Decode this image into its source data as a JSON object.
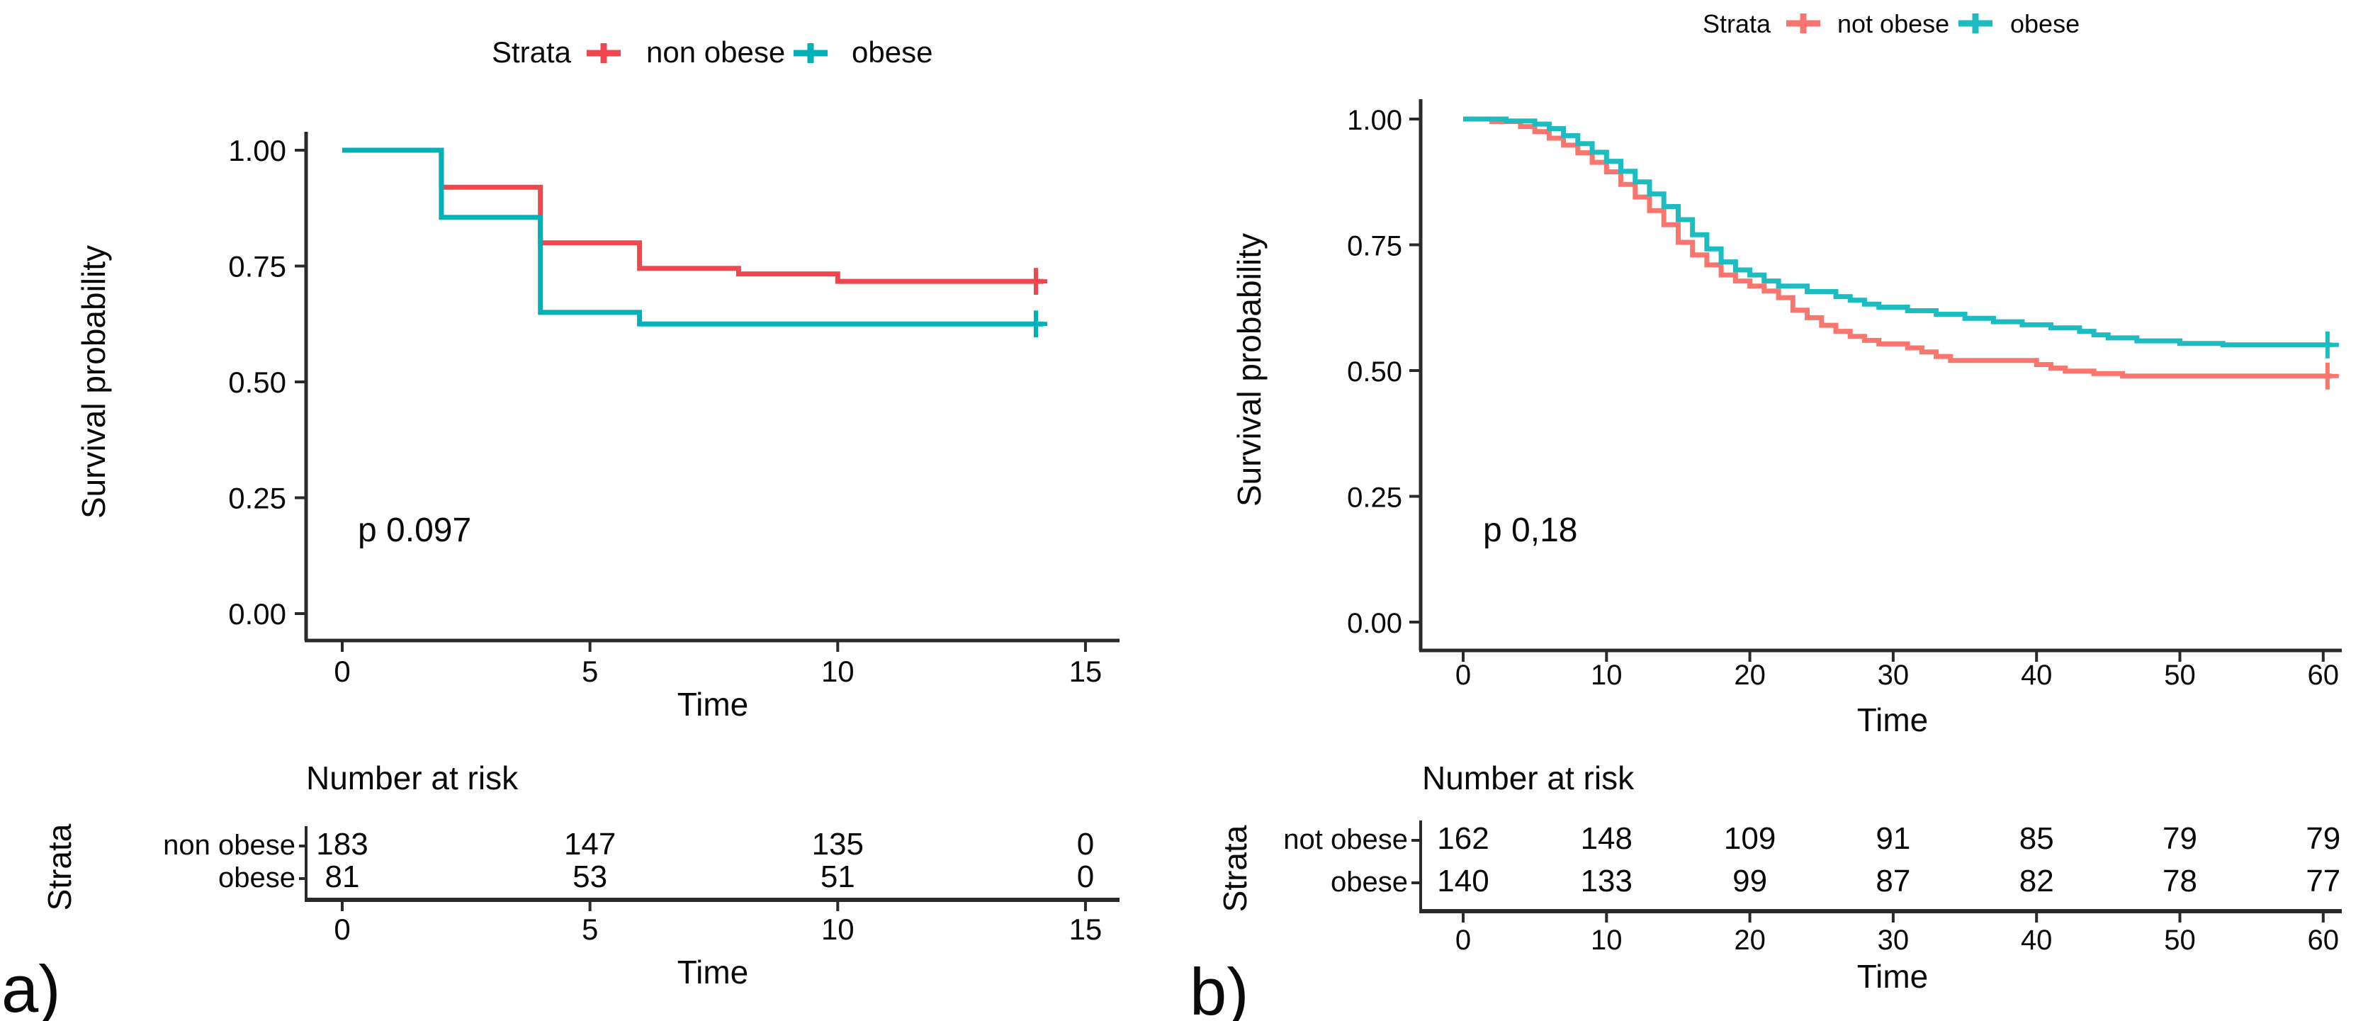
{
  "figure": {
    "background": "#ffffff",
    "panel_letters": [
      "a)",
      "b)"
    ]
  },
  "chart_data": [
    {
      "id": "a",
      "type": "km_step",
      "panel_letter": "a)",
      "legend": {
        "title": "Strata",
        "position": "top-center",
        "items": [
          {
            "label": "non obese",
            "color": "#F0474E",
            "key_glyph": "plus-cross"
          },
          {
            "label": "obese",
            "color": "#00B2B8",
            "key_glyph": "plus-cross"
          }
        ]
      },
      "xlabel": "Time",
      "ylabel": "Survival probability",
      "xlim": [
        0,
        15.7
      ],
      "ylim": [
        0,
        1.05
      ],
      "grid": false,
      "xticks": [
        {
          "t": 0,
          "label": "0"
        },
        {
          "t": 5,
          "label": "5"
        },
        {
          "t": 10,
          "label": "10"
        },
        {
          "t": 15,
          "label": "15"
        }
      ],
      "yticks": [
        {
          "v": 0,
          "label": "0.00"
        },
        {
          "v": 0.25,
          "label": "0.25"
        },
        {
          "v": 0.5,
          "label": "0.50"
        },
        {
          "v": 0.75,
          "label": "0.75"
        },
        {
          "v": 1,
          "label": "1.00"
        }
      ],
      "p_label": "p 0.097",
      "series": [
        {
          "name": "non obese",
          "color": "#F0474E",
          "steps": [
            [
              0,
              1
            ],
            [
              2,
              1
            ],
            [
              2,
              0.92
            ],
            [
              4,
              0.92
            ],
            [
              4,
              0.8
            ],
            [
              6,
              0.8
            ],
            [
              6,
              0.745
            ],
            [
              8,
              0.745
            ],
            [
              8,
              0.733
            ],
            [
              10,
              0.733
            ],
            [
              10,
              0.717
            ],
            [
              14.15,
              0.717
            ]
          ],
          "censors": [
            [
              14,
              0.717
            ]
          ]
        },
        {
          "name": "obese",
          "color": "#00B2B8",
          "steps": [
            [
              0,
              1
            ],
            [
              2,
              1
            ],
            [
              2,
              0.855
            ],
            [
              4,
              0.855
            ],
            [
              4,
              0.65
            ],
            [
              6,
              0.65
            ],
            [
              6,
              0.625
            ],
            [
              14.15,
              0.625
            ]
          ],
          "censors": [
            [
              14,
              0.625
            ]
          ]
        }
      ],
      "risk_table": {
        "title": "Number at risk",
        "strata_axis_label": "Strata",
        "time_label": "Time",
        "times": [
          0,
          5,
          10,
          15
        ],
        "tick_labels": [
          "0",
          "5",
          "10",
          "15"
        ],
        "rows": [
          {
            "label": "non obese",
            "color": "#F4928B",
            "values": [
              "183",
              "147",
              "135",
              "0"
            ]
          },
          {
            "label": "obese",
            "color": "#33C4C7",
            "values": [
              "81",
              "53",
              "51",
              "0"
            ]
          }
        ]
      }
    },
    {
      "id": "b",
      "type": "km_step",
      "panel_letter": "b)",
      "legend": {
        "title": "Strata",
        "position": "top-center",
        "items": [
          {
            "label": "not obese",
            "color": "#F8766D",
            "key_glyph": "plus-cross"
          },
          {
            "label": "obese",
            "color": "#1DBCC1",
            "key_glyph": "plus-cross"
          }
        ]
      },
      "xlabel": "Time",
      "ylabel": "Survival probability",
      "xlim": [
        0,
        61.5
      ],
      "ylim": [
        0,
        1.05
      ],
      "grid": false,
      "xticks": [
        {
          "t": 0,
          "label": "0"
        },
        {
          "t": 10,
          "label": "10"
        },
        {
          "t": 20,
          "label": "20"
        },
        {
          "t": 30,
          "label": "30"
        },
        {
          "t": 40,
          "label": "40"
        },
        {
          "t": 50,
          "label": "50"
        },
        {
          "t": 60,
          "label": "60"
        }
      ],
      "yticks": [
        {
          "v": 0,
          "label": "0.00"
        },
        {
          "v": 0.25,
          "label": "0.25"
        },
        {
          "v": 0.5,
          "label": "0.50"
        },
        {
          "v": 0.75,
          "label": "0.75"
        },
        {
          "v": 1,
          "label": "1.00"
        }
      ],
      "p_label": "p 0,18",
      "series": [
        {
          "name": "not obese",
          "color": "#F8766D",
          "steps": [
            [
              0,
              1
            ],
            [
              2,
              1
            ],
            [
              2,
              0.995
            ],
            [
              4,
              0.995
            ],
            [
              4,
              0.985
            ],
            [
              5,
              0.985
            ],
            [
              5,
              0.975
            ],
            [
              6,
              0.975
            ],
            [
              6,
              0.962
            ],
            [
              7,
              0.962
            ],
            [
              7,
              0.948
            ],
            [
              8,
              0.948
            ],
            [
              8,
              0.933
            ],
            [
              9,
              0.933
            ],
            [
              9,
              0.914
            ],
            [
              10,
              0.914
            ],
            [
              10,
              0.895
            ],
            [
              11,
              0.895
            ],
            [
              11,
              0.87
            ],
            [
              12,
              0.87
            ],
            [
              12,
              0.845
            ],
            [
              13,
              0.845
            ],
            [
              13,
              0.818
            ],
            [
              14,
              0.818
            ],
            [
              14,
              0.79
            ],
            [
              15,
              0.79
            ],
            [
              15,
              0.755
            ],
            [
              16,
              0.755
            ],
            [
              16,
              0.73
            ],
            [
              17,
              0.73
            ],
            [
              17,
              0.71
            ],
            [
              18,
              0.71
            ],
            [
              18,
              0.69
            ],
            [
              19,
              0.69
            ],
            [
              19,
              0.678
            ],
            [
              20,
              0.678
            ],
            [
              20,
              0.668
            ],
            [
              21,
              0.668
            ],
            [
              21,
              0.658
            ],
            [
              22,
              0.658
            ],
            [
              22,
              0.645
            ],
            [
              23,
              0.645
            ],
            [
              23,
              0.62
            ],
            [
              24,
              0.62
            ],
            [
              24,
              0.605
            ],
            [
              25,
              0.605
            ],
            [
              25,
              0.59
            ],
            [
              26,
              0.59
            ],
            [
              26,
              0.578
            ],
            [
              27,
              0.578
            ],
            [
              27,
              0.568
            ],
            [
              28,
              0.568
            ],
            [
              28,
              0.56
            ],
            [
              29,
              0.56
            ],
            [
              29,
              0.553
            ],
            [
              30,
              0.553
            ],
            [
              31,
              0.553
            ],
            [
              31,
              0.545
            ],
            [
              32,
              0.545
            ],
            [
              32,
              0.537
            ],
            [
              33,
              0.537
            ],
            [
              33,
              0.528
            ],
            [
              34,
              0.528
            ],
            [
              34,
              0.52
            ],
            [
              40,
              0.52
            ],
            [
              40,
              0.512
            ],
            [
              41,
              0.512
            ],
            [
              41,
              0.505
            ],
            [
              42,
              0.505
            ],
            [
              42,
              0.499
            ],
            [
              44,
              0.499
            ],
            [
              44,
              0.494
            ],
            [
              46,
              0.494
            ],
            [
              46,
              0.489
            ],
            [
              60.6,
              0.489
            ]
          ],
          "censors": [
            [
              60.3,
              0.489
            ]
          ]
        },
        {
          "name": "obese",
          "color": "#1DBCC1",
          "steps": [
            [
              0,
              1
            ],
            [
              3,
              1
            ],
            [
              3,
              0.996
            ],
            [
              5,
              0.996
            ],
            [
              5,
              0.99
            ],
            [
              6,
              0.99
            ],
            [
              6,
              0.981
            ],
            [
              7,
              0.981
            ],
            [
              7,
              0.967
            ],
            [
              8,
              0.967
            ],
            [
              8,
              0.951
            ],
            [
              9,
              0.951
            ],
            [
              9,
              0.934
            ],
            [
              10,
              0.934
            ],
            [
              10,
              0.916
            ],
            [
              11,
              0.916
            ],
            [
              11,
              0.896
            ],
            [
              12,
              0.896
            ],
            [
              12,
              0.875
            ],
            [
              13,
              0.875
            ],
            [
              13,
              0.851
            ],
            [
              14,
              0.851
            ],
            [
              14,
              0.826
            ],
            [
              15,
              0.826
            ],
            [
              15,
              0.8
            ],
            [
              16,
              0.8
            ],
            [
              16,
              0.77
            ],
            [
              17,
              0.77
            ],
            [
              17,
              0.742
            ],
            [
              18,
              0.742
            ],
            [
              18,
              0.716
            ],
            [
              19,
              0.716
            ],
            [
              19,
              0.7
            ],
            [
              20,
              0.7
            ],
            [
              20,
              0.69
            ],
            [
              21,
              0.69
            ],
            [
              21,
              0.678
            ],
            [
              22,
              0.678
            ],
            [
              22,
              0.668
            ],
            [
              23,
              0.668
            ],
            [
              24,
              0.668
            ],
            [
              24,
              0.657
            ],
            [
              26,
              0.657
            ],
            [
              26,
              0.647
            ],
            [
              27,
              0.647
            ],
            [
              27,
              0.64
            ],
            [
              28,
              0.64
            ],
            [
              28,
              0.632
            ],
            [
              29,
              0.632
            ],
            [
              29,
              0.626
            ],
            [
              31,
              0.626
            ],
            [
              31,
              0.619
            ],
            [
              33,
              0.619
            ],
            [
              33,
              0.612
            ],
            [
              35,
              0.612
            ],
            [
              35,
              0.604
            ],
            [
              37,
              0.604
            ],
            [
              37,
              0.597
            ],
            [
              39,
              0.597
            ],
            [
              39,
              0.591
            ],
            [
              41,
              0.591
            ],
            [
              41,
              0.585
            ],
            [
              43,
              0.585
            ],
            [
              43,
              0.578
            ],
            [
              44,
              0.578
            ],
            [
              44,
              0.571
            ],
            [
              45,
              0.571
            ],
            [
              45,
              0.565
            ],
            [
              47,
              0.565
            ],
            [
              47,
              0.559
            ],
            [
              50,
              0.559
            ],
            [
              50,
              0.554
            ],
            [
              53,
              0.554
            ],
            [
              53,
              0.551
            ],
            [
              60.6,
              0.551
            ]
          ],
          "censors": [
            [
              60.3,
              0.551
            ]
          ]
        }
      ],
      "risk_table": {
        "title": "Number at risk",
        "strata_axis_label": "Strata",
        "time_label": "Time",
        "times": [
          0,
          10,
          20,
          30,
          40,
          50,
          60
        ],
        "tick_labels": [
          "0",
          "10",
          "20",
          "30",
          "40",
          "50",
          "60"
        ],
        "rows": [
          {
            "label": "not obese",
            "color": "#F4928B",
            "values": [
              "162",
              "148",
              "109",
              "91",
              "85",
              "79",
              "79"
            ]
          },
          {
            "label": "obese",
            "color": "#33C4C7",
            "values": [
              "140",
              "133",
              "99",
              "87",
              "82",
              "78",
              "77"
            ]
          }
        ]
      }
    }
  ]
}
